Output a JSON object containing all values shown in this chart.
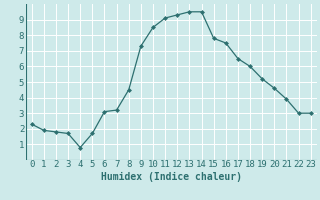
{
  "x": [
    0,
    1,
    2,
    3,
    4,
    5,
    6,
    7,
    8,
    9,
    10,
    11,
    12,
    13,
    14,
    15,
    16,
    17,
    18,
    19,
    20,
    21,
    22,
    23
  ],
  "y": [
    2.3,
    1.9,
    1.8,
    1.7,
    0.8,
    1.7,
    3.1,
    3.2,
    4.5,
    7.3,
    8.5,
    9.1,
    9.3,
    9.5,
    9.5,
    7.8,
    7.5,
    6.5,
    6.0,
    5.2,
    4.6,
    3.9,
    3.0,
    3.0
  ],
  "line_color": "#2d7070",
  "marker": "D",
  "marker_size": 2.0,
  "xlabel": "Humidex (Indice chaleur)",
  "xlim": [
    -0.5,
    23.5
  ],
  "ylim": [
    0,
    10
  ],
  "yticks": [
    1,
    2,
    3,
    4,
    5,
    6,
    7,
    8,
    9
  ],
  "xticks": [
    0,
    1,
    2,
    3,
    4,
    5,
    6,
    7,
    8,
    9,
    10,
    11,
    12,
    13,
    14,
    15,
    16,
    17,
    18,
    19,
    20,
    21,
    22,
    23
  ],
  "bg_color": "#ceeaea",
  "grid_color": "#ffffff",
  "text_color": "#2d7070",
  "xlabel_fontsize": 7,
  "tick_fontsize": 6.5
}
